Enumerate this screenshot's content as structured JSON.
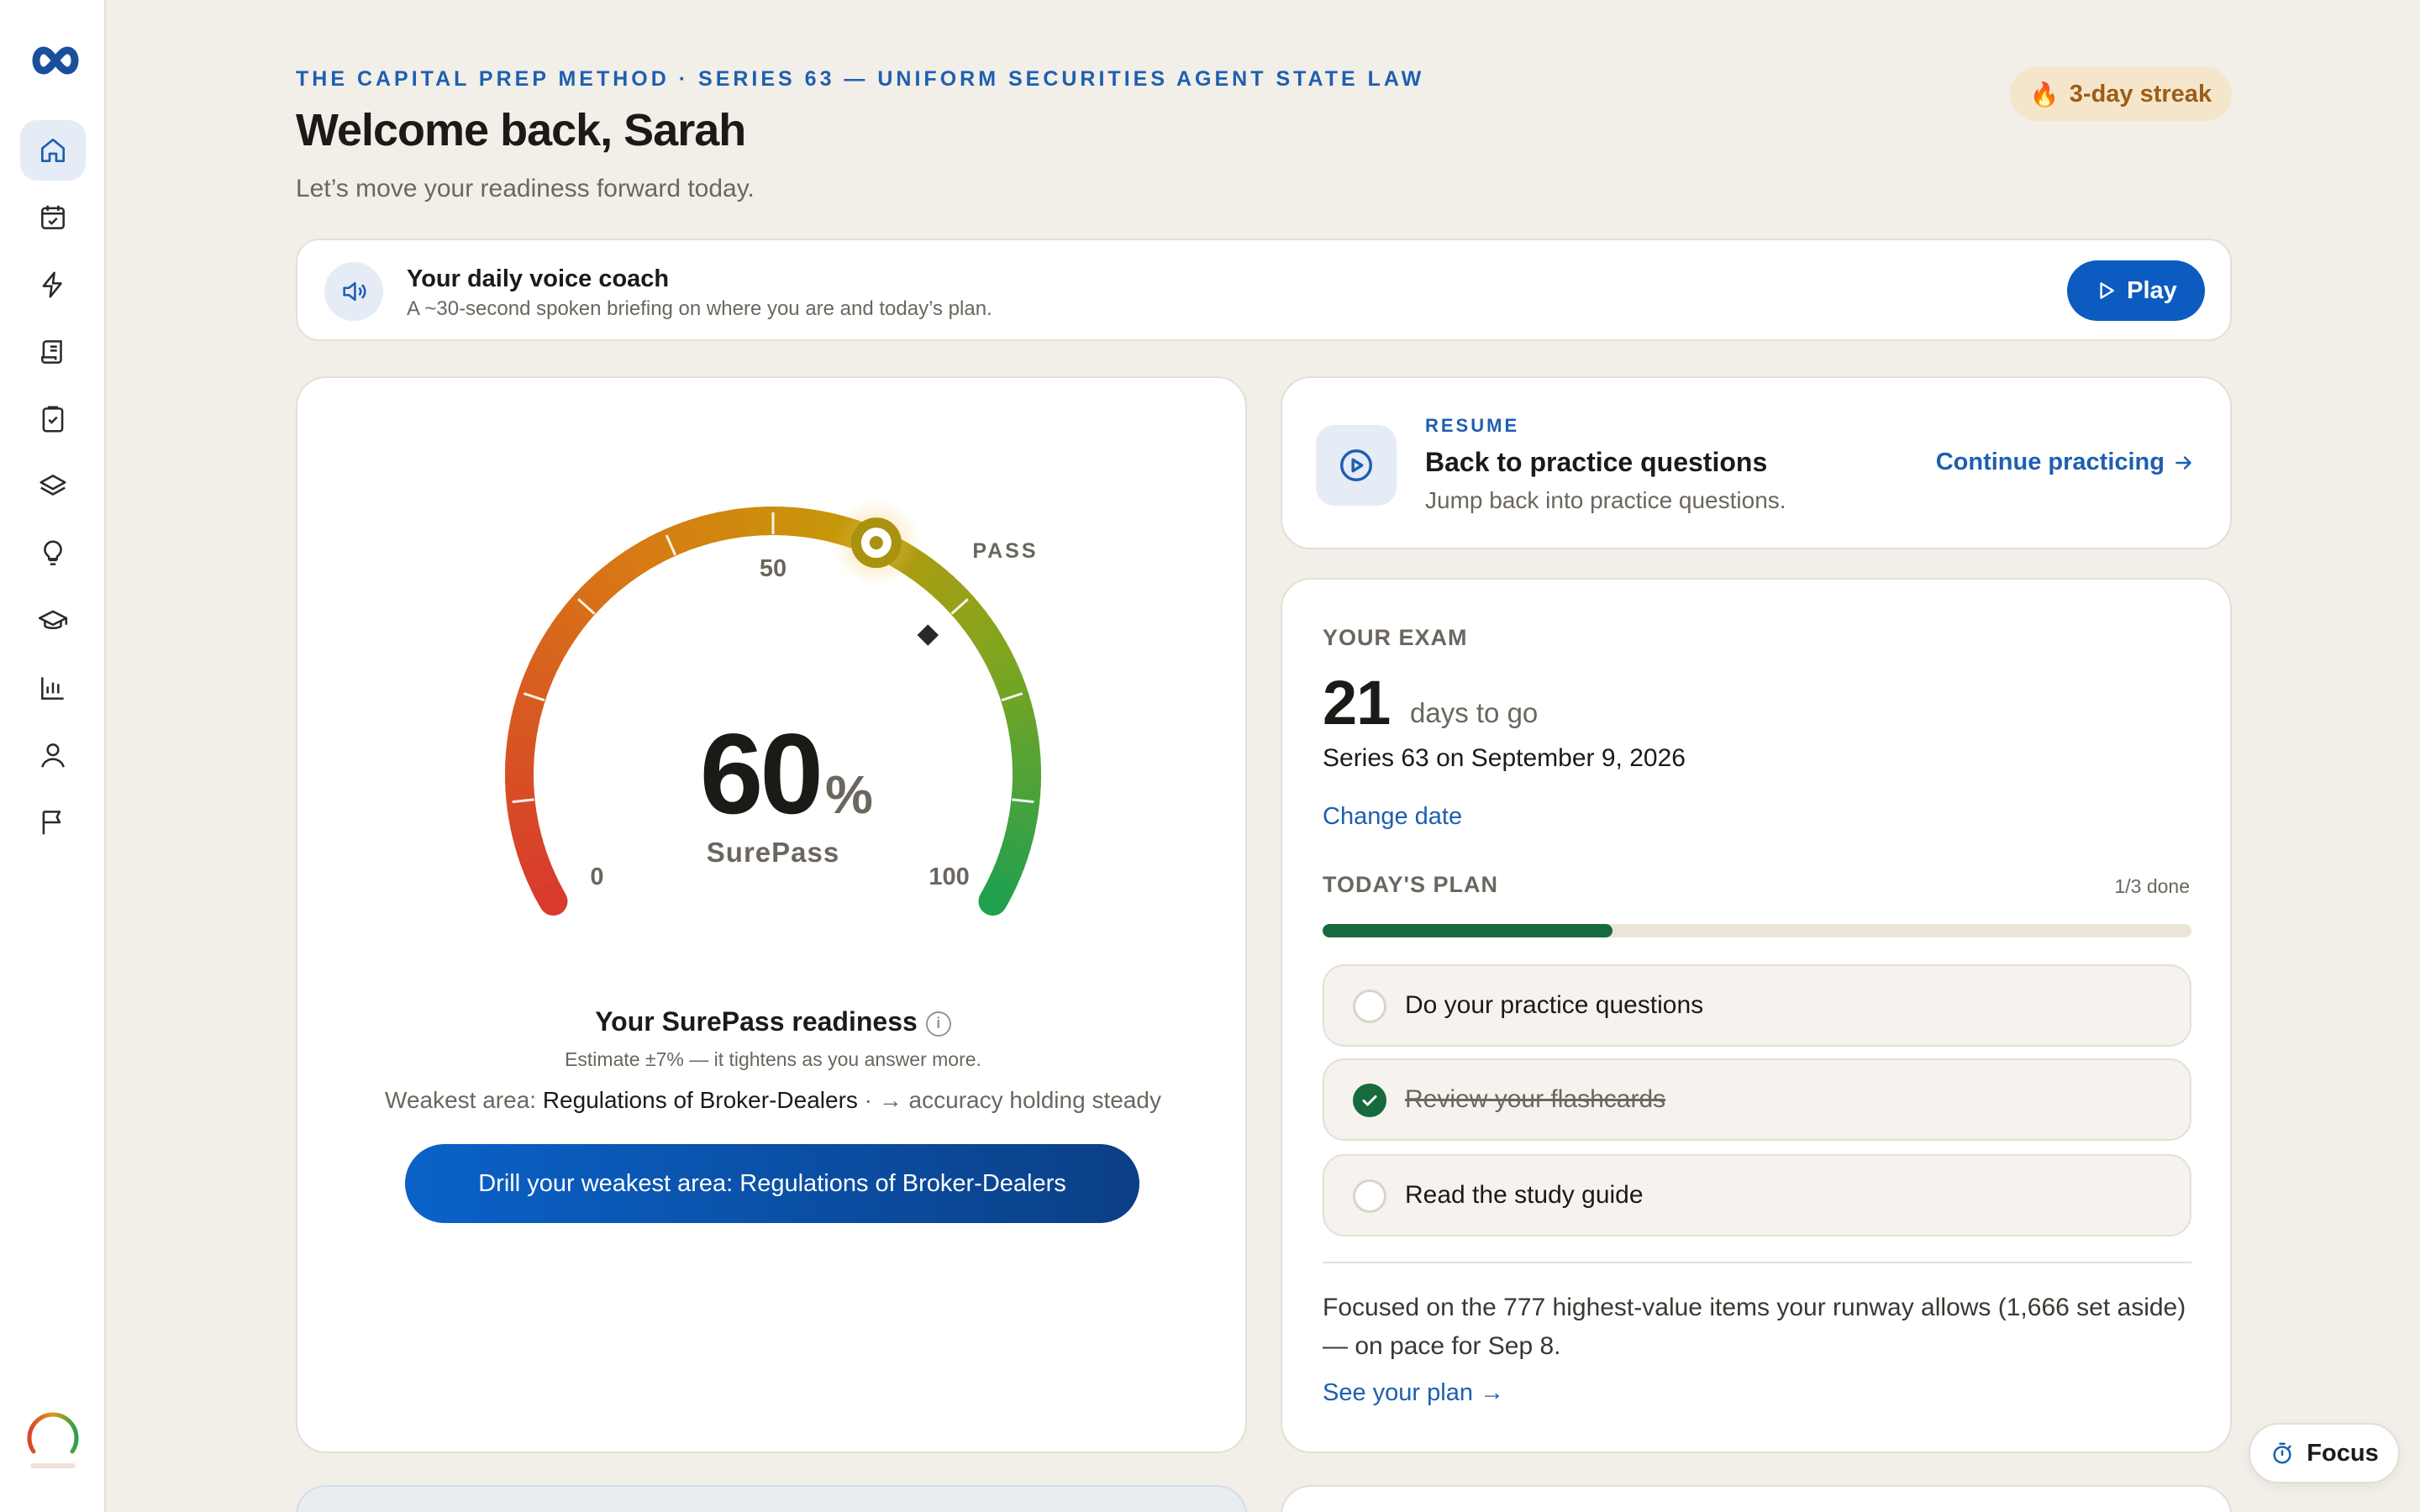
{
  "sidebar": {
    "logo_icon": "infinity-logo-icon",
    "items": [
      {
        "icon": "home-icon",
        "active": true
      },
      {
        "icon": "calendar-check-icon",
        "active": false
      },
      {
        "icon": "lightning-icon",
        "active": false
      },
      {
        "icon": "scroll-icon",
        "active": false
      },
      {
        "icon": "clipboard-check-icon",
        "active": false
      },
      {
        "icon": "layers-icon",
        "active": false
      },
      {
        "icon": "lightbulb-icon",
        "active": false
      },
      {
        "icon": "graduation-cap-icon",
        "active": false
      },
      {
        "icon": "bar-chart-icon",
        "active": false
      },
      {
        "icon": "user-icon",
        "active": false
      },
      {
        "icon": "flag-icon",
        "active": false
      }
    ]
  },
  "header": {
    "eyebrow": "THE CAPITAL PREP METHOD · SERIES 63 — UNIFORM SECURITIES AGENT STATE LAW",
    "welcome": "Welcome back, Sarah",
    "subtitle": "Let’s move your readiness forward today.",
    "streak": "3-day streak",
    "streak_icon": "🔥"
  },
  "voice_coach": {
    "title": "Your daily voice coach",
    "subtitle": "A ~30-second spoken briefing on where you are and today’s plan.",
    "play_label": "Play"
  },
  "gauge": {
    "value": 60,
    "value_text": "60",
    "percent_sign": "%",
    "brand": "SurePass",
    "pass_label": "PASS",
    "pass_marker_value": 70,
    "tick_min": "0",
    "tick_mid": "50",
    "tick_max": "100"
  },
  "readiness": {
    "title": "Your SurePass readiness",
    "info": "i",
    "estimate": "Estimate ±7% — it tightens as you answer more.",
    "weakest_prefix": "Weakest area: ",
    "weakest_area": "Regulations of Broker-Dealers",
    "weakest_suffix": " · → accuracy holding steady",
    "drill_label": "Drill your weakest area: Regulations of Broker-Dealers"
  },
  "resume": {
    "eyebrow": "RESUME",
    "title": "Back to practice questions",
    "subtitle": "Jump back into practice questions.",
    "link": "Continue practicing"
  },
  "exam": {
    "eyebrow": "YOUR EXAM",
    "days": "21",
    "days_label": "days to go",
    "date_line": "Series 63 on September 9, 2026",
    "change_date": "Change date",
    "plan_title": "TODAY'S PLAN",
    "plan_count": "1/3 done",
    "progress": 0.3333,
    "tasks": [
      {
        "label": "Do your practice questions",
        "done": false
      },
      {
        "label": "Review your flashcards",
        "done": true
      },
      {
        "label": "Read the study guide",
        "done": false
      }
    ],
    "focus_text": "Focused on the 777 highest-value items your runway allows (1,666 set aside) — on pace for Sep 8.",
    "see_plan": "See your plan →"
  },
  "focus_button": {
    "label": "Focus",
    "icon": "stopwatch-icon"
  },
  "colors": {
    "accent": "#0c5bc0",
    "progress": "#176a3e",
    "streak_text": "#9b5d17",
    "background": "#f2eee8"
  }
}
